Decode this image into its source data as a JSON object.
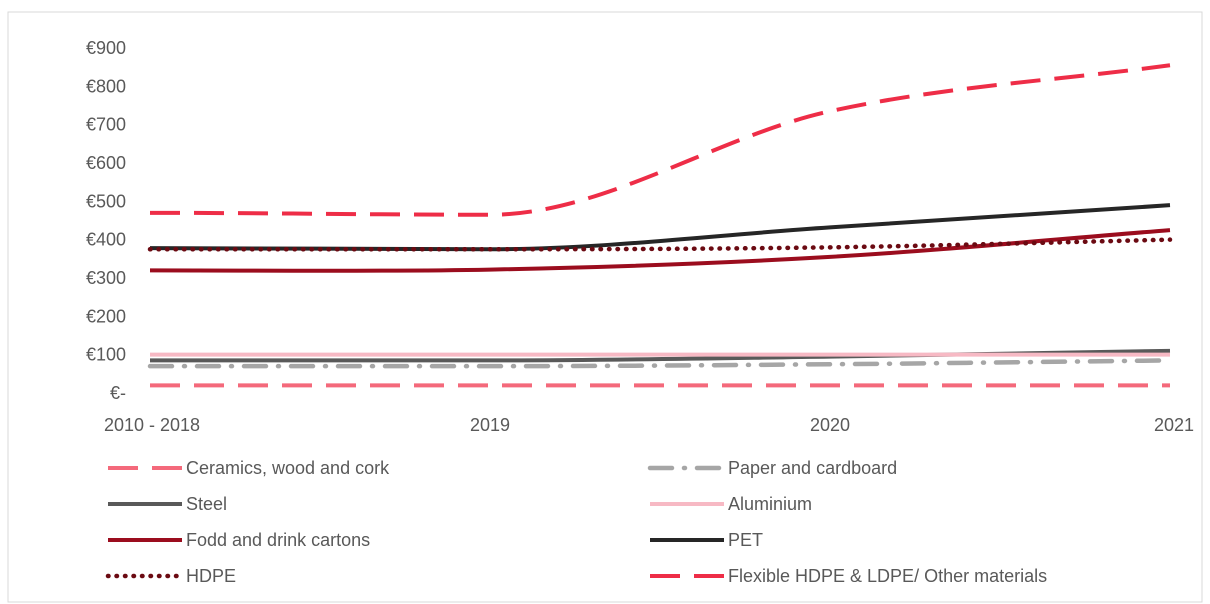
{
  "chart_data": {
    "type": "line",
    "title": "",
    "xlabel": "",
    "ylabel": "",
    "categories": [
      "2010 - 2018",
      "2019",
      "2020",
      "2021"
    ],
    "y_tick_labels": [
      "€-",
      "€100",
      "€200",
      "€300",
      "€400",
      "€500",
      "€600",
      "€700",
      "€800",
      "€900"
    ],
    "y_tick_values": [
      0,
      100,
      200,
      300,
      400,
      500,
      600,
      700,
      800,
      900
    ],
    "ylim": [
      0,
      900
    ],
    "grid": false,
    "legend_position": "bottom",
    "series": [
      {
        "name": "Ceramics, wood and cork",
        "values": [
          20,
          20,
          20,
          20
        ],
        "color": "#f4697b",
        "style": "dashed"
      },
      {
        "name": "Paper and cardboard",
        "values": [
          70,
          70,
          75,
          85
        ],
        "color": "#a6a6a6",
        "style": "dash-dot"
      },
      {
        "name": "Steel",
        "values": [
          85,
          85,
          95,
          110
        ],
        "color": "#595959",
        "style": "solid"
      },
      {
        "name": "Aluminium",
        "values": [
          100,
          100,
          100,
          100
        ],
        "color": "#f7b9c4",
        "style": "solid"
      },
      {
        "name": "Fodd and drink cartons",
        "values": [
          320,
          322,
          355,
          425
        ],
        "color": "#9b0d1e",
        "style": "solid"
      },
      {
        "name": "PET",
        "values": [
          378,
          375,
          432,
          490
        ],
        "color": "#262626",
        "style": "solid"
      },
      {
        "name": "HDPE",
        "values": [
          375,
          375,
          380,
          400
        ],
        "color": "#6b0a12",
        "style": "dotted"
      },
      {
        "name": "Flexible HDPE & LDPE/ Other materials",
        "values": [
          470,
          465,
          735,
          855
        ],
        "color": "#ee2d47",
        "style": "dashed"
      }
    ]
  }
}
